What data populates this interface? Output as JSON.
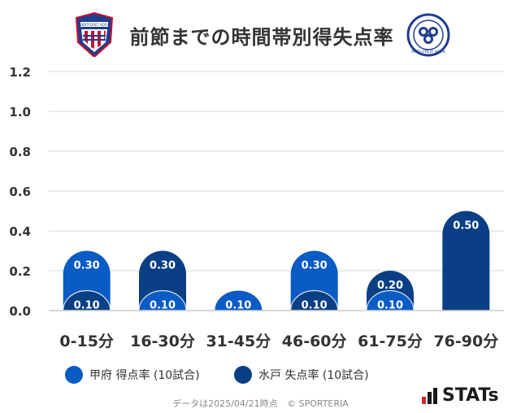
{
  "header": {
    "title": "前節までの時間帯別得失点率",
    "home_logo_text": "VENTFORET KOFU",
    "away_logo_text": "MITO HOLLY HOCK"
  },
  "colors": {
    "home": "#0b5bc4",
    "away": "#0a3f85",
    "grid": "#e6e6e6"
  },
  "legend": {
    "home_label": "甲府 得点率 (10試合)",
    "away_label": "水戸 失点率 (10試合)"
  },
  "footer": {
    "date": "データは2025/04/21時点",
    "copyright": "© SPORTERIA"
  },
  "brand": {
    "name": "STATs"
  },
  "chart_data": {
    "type": "bar",
    "categories": [
      "0-15分",
      "16-30分",
      "31-45分",
      "46-60分",
      "61-75分",
      "76-90分"
    ],
    "series": [
      {
        "name": "甲府 得点率 (10試合)",
        "values": [
          0.3,
          0.1,
          0.1,
          0.3,
          0.1,
          0.0
        ],
        "labels": [
          "0.30",
          "0.10",
          "0.10",
          "0.30",
          "0.10",
          ""
        ]
      },
      {
        "name": "水戸 失点率 (10試合)",
        "values": [
          0.1,
          0.3,
          0.0,
          0.1,
          0.2,
          0.5
        ],
        "labels": [
          "0.10",
          "0.30",
          "",
          "0.10",
          "0.20",
          "0.50"
        ]
      }
    ],
    "yticks": [
      "0.0",
      "0.2",
      "0.4",
      "0.6",
      "0.8",
      "1.0",
      "1.2"
    ],
    "ylim": [
      0,
      1.2
    ],
    "title": "前節までの時間帯別得失点率",
    "xlabel": "",
    "ylabel": ""
  }
}
